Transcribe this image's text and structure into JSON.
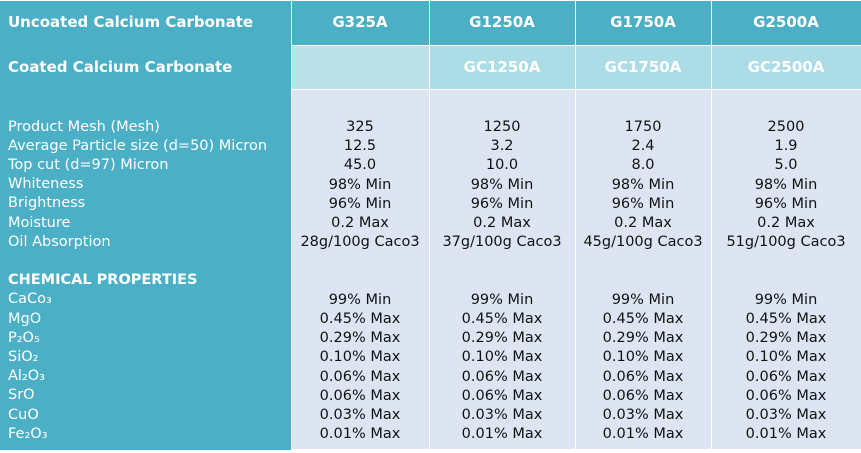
{
  "header": {
    "row1_label": "Uncoated Calcium Carbonate",
    "row1_grades": [
      "G325A",
      "G1250A",
      "G1750A",
      "G2500A"
    ],
    "row2_label": "Coated Calcium Carbonate",
    "row2_grades": [
      "",
      "GC1250A",
      "GC1750A",
      "GC2500A"
    ]
  },
  "physical": {
    "labels": [
      "Product Mesh (Mesh)",
      "Average Particle size (d=50) Micron",
      "Top cut (d=97) Micron",
      "Whiteness",
      "Brightness",
      "Moisture",
      "Oil Absorption"
    ],
    "columns": [
      [
        "325",
        "12.5",
        "45.0",
        "98% Min",
        "96% Min",
        "0.2 Max",
        "28g/100g Caco3"
      ],
      [
        "1250",
        "3.2",
        "10.0",
        "98% Min",
        "96% Min",
        "0.2 Max",
        "37g/100g Caco3"
      ],
      [
        "1750",
        "2.4",
        "8.0",
        "98% Min",
        "96% Min",
        "0.2 Max",
        "45g/100g Caco3"
      ],
      [
        "2500",
        "1.9",
        "5.0",
        "98% Min",
        "96% Min",
        "0.2 Max",
        "51g/100g Caco3"
      ]
    ]
  },
  "chemical": {
    "heading": "CHEMICAL PROPERTIES",
    "labels": [
      "CaCo₃",
      "MgO",
      "P₂O₅",
      "SiO₂",
      "Al₂O₃",
      "SrO",
      "CuO",
      "Fe₂O₃"
    ],
    "columns": [
      [
        "99% Min",
        "0.45% Max",
        "0.29% Max",
        "0.10% Max",
        "0.06% Max",
        "0.06% Max",
        "0.03% Max",
        "0.01% Max"
      ],
      [
        "99% Min",
        "0.45% Max",
        "0.29% Max",
        "0.10% Max",
        "0.06% Max",
        "0.06% Max",
        "0.03% Max",
        "0.01% Max"
      ],
      [
        "99% Min",
        "0.45% Max",
        "0.29% Max",
        "0.10% Max",
        "0.06% Max",
        "0.06% Max",
        "0.03% Max",
        "0.01% Max"
      ],
      [
        "99% Min",
        "0.45% Max",
        "0.29% Max",
        "0.10% Max",
        "0.06% Max",
        "0.06% Max",
        "0.03% Max",
        "0.01% Max"
      ]
    ]
  }
}
